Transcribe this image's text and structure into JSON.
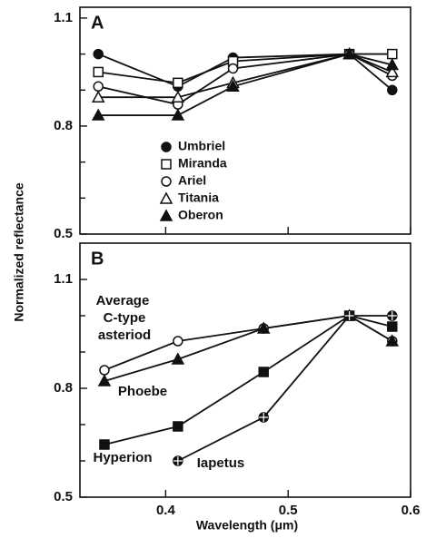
{
  "chart_data": [
    {
      "type": "line",
      "panel_label": "A",
      "ylabel": "Normalized reflectance",
      "x": [
        0.345,
        0.41,
        0.455,
        0.55,
        0.585
      ],
      "xlim": [
        0.33,
        0.6
      ],
      "xticks": [
        0.4,
        0.5,
        0.6
      ],
      "ylim": [
        0.5,
        1.13
      ],
      "yticks": [
        0.5,
        0.8,
        1.1
      ],
      "yminor": [
        0.6,
        0.7,
        0.9,
        1.0
      ],
      "legend": "center",
      "series": [
        {
          "name": "Umbriel",
          "color": "#111111",
          "marker": "filled-circle",
          "values": [
            1.0,
            0.91,
            0.99,
            1.0,
            0.9
          ]
        },
        {
          "name": "Miranda",
          "color": "#111111",
          "marker": "open-square",
          "values": [
            0.95,
            0.92,
            0.98,
            1.0,
            1.0
          ]
        },
        {
          "name": "Ariel",
          "color": "#111111",
          "marker": "open-circle",
          "values": [
            0.91,
            0.86,
            0.96,
            1.0,
            0.94
          ]
        },
        {
          "name": "Titania",
          "color": "#111111",
          "marker": "open-triangle",
          "values": [
            0.88,
            0.88,
            0.92,
            1.0,
            0.95
          ]
        },
        {
          "name": "Oberon",
          "color": "#111111",
          "marker": "filled-triangle",
          "values": [
            0.83,
            0.83,
            0.91,
            1.0,
            0.97
          ]
        }
      ]
    },
    {
      "type": "line",
      "panel_label": "B",
      "xlabel": "Wavelength (μm)",
      "x": [
        0.35,
        0.41,
        0.48,
        0.55,
        0.585
      ],
      "xlim": [
        0.33,
        0.6
      ],
      "xticks": [
        0.4,
        0.5,
        0.6
      ],
      "ylim": [
        0.5,
        1.2
      ],
      "yticks": [
        0.5,
        0.8,
        1.1
      ],
      "yminor": [
        0.6,
        0.7,
        0.9,
        1.0
      ],
      "annotations": [
        "Average",
        "C-type",
        "asteriod",
        "Phoebe",
        "Hyperion",
        "Iapetus"
      ],
      "series": [
        {
          "color": "#111111",
          "marker": "open-circle",
          "values": [
            0.85,
            0.93,
            0.965,
            1.0,
            0.93
          ]
        },
        {
          "color": "#111111",
          "marker": "filled-triangle",
          "values": [
            0.82,
            0.88,
            0.965,
            1.0,
            0.93
          ]
        },
        {
          "color": "#111111",
          "marker": "filled-square",
          "values": [
            0.645,
            0.695,
            0.845,
            1.0,
            0.97
          ]
        },
        {
          "color": "#111111",
          "marker": "crossed-circle",
          "values": [
            null,
            0.6,
            0.72,
            1.0,
            1.0
          ]
        }
      ]
    }
  ]
}
